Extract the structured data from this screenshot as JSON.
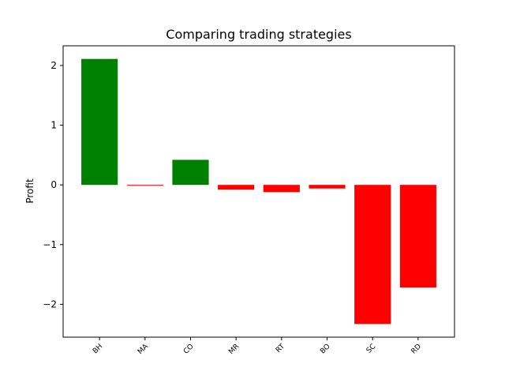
{
  "chart_data": {
    "type": "bar",
    "title": "Comparing trading strategies",
    "xlabel": "",
    "ylabel": "Profit",
    "categories": [
      "BH",
      "MA",
      "CO",
      "MR",
      "RT",
      "BO",
      "SC",
      "RD"
    ],
    "values": [
      2.11,
      -0.01,
      0.42,
      -0.08,
      -0.12,
      -0.06,
      -2.33,
      -1.72
    ],
    "bar_colors": [
      "#008000",
      "#ff0000",
      "#008000",
      "#ff0000",
      "#ff0000",
      "#ff0000",
      "#ff0000",
      "#ff0000"
    ],
    "ylim": [
      -2.55,
      2.33
    ],
    "yticks": [
      -2,
      -1,
      0,
      1,
      2
    ],
    "ytick_labels": [
      "−2",
      "−1",
      "0",
      "1",
      "2"
    ],
    "grid": false,
    "legend": "none"
  }
}
